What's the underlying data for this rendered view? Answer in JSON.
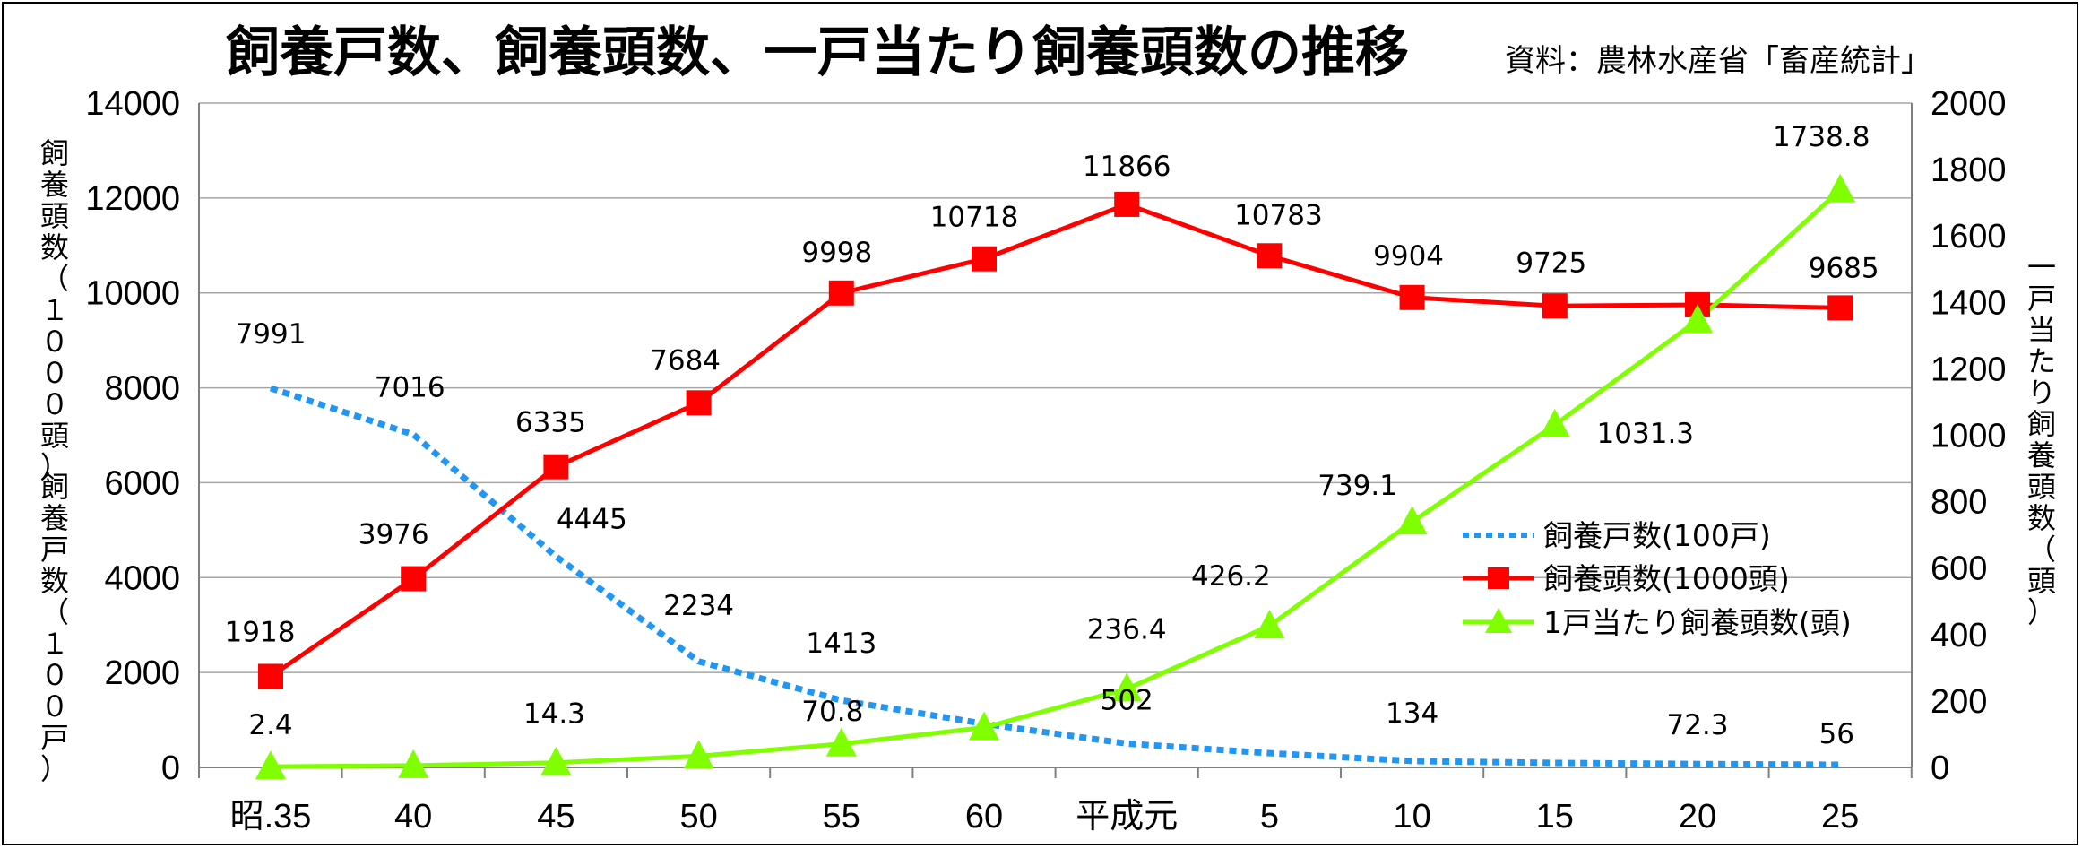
{
  "chart_data": {
    "type": "line",
    "title": "飼養戸数、飼養頭数、一戸当たり飼養頭数の推移",
    "source": "資料：農林水産省「畜産統計」",
    "categories": [
      "昭.35",
      "40",
      "45",
      "50",
      "55",
      "60",
      "平成元",
      "5",
      "10",
      "15",
      "20",
      "25"
    ],
    "y_left": {
      "range": [
        0,
        14000
      ],
      "ticks": [
        "0",
        "2000",
        "4000",
        "6000",
        "8000",
        "10000",
        "12000",
        "14000"
      ],
      "label_top": "飼養頭数（１０００頭）",
      "label_bottom": "飼養戸数（１００戸）"
    },
    "y_right": {
      "range": [
        0,
        2000
      ],
      "ticks": [
        "0",
        "200",
        "400",
        "600",
        "800",
        "1000",
        "1200",
        "1400",
        "1600",
        "1800",
        "2000"
      ],
      "label": "一戸当たり飼養頭数（頭）"
    },
    "grid": true,
    "legend_position": "right-middle",
    "series": [
      {
        "name": "飼養戸数(100戸)",
        "axis": "left",
        "style": "dotted",
        "color": "#2196F3",
        "values": [
          7991,
          7016,
          4445,
          2234,
          1413,
          920,
          502,
          300,
          134,
          95,
          72.3,
          56
        ],
        "labels": [
          "7991",
          "7016",
          "4445",
          "2234",
          "1413",
          "",
          "502",
          "",
          "134",
          "",
          "72.3",
          "56"
        ]
      },
      {
        "name": "飼養頭数(1000頭)",
        "axis": "left",
        "style": "line-square",
        "color": "#ff0000",
        "values": [
          1918,
          3976,
          6335,
          7684,
          9998,
          10718,
          11866,
          10783,
          9904,
          9725,
          9750,
          9685
        ],
        "labels": [
          "1918",
          "3976",
          "6335",
          "7684",
          "9998",
          "10718",
          "11866",
          "10783",
          "9904",
          "9725",
          "",
          "9685"
        ]
      },
      {
        "name": "1戸当たり飼養頭数(頭)",
        "axis": "right",
        "style": "line-triangle",
        "color": "#7fff00",
        "values": [
          2.4,
          5.7,
          14.3,
          34.2,
          70.8,
          120,
          236.4,
          426.2,
          739.1,
          1031.3,
          1346,
          1738.8
        ],
        "labels": [
          "2.4",
          "",
          "14.3",
          "",
          "70.8",
          "",
          "236.4",
          "426.2",
          "739.1",
          "1031.3",
          "",
          "1738.8"
        ]
      }
    ]
  }
}
